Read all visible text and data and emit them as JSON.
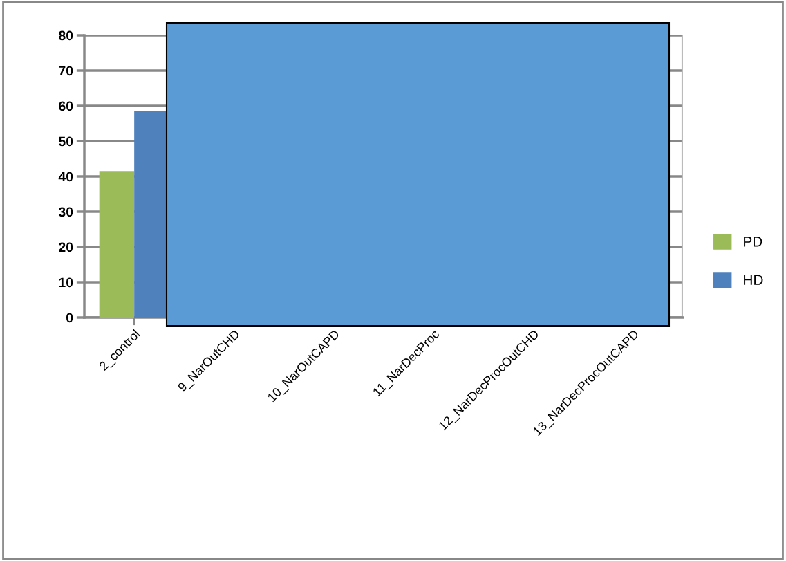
{
  "chart_data": {
    "type": "bar",
    "categories": [
      "2_control",
      "9_NarOutCHD",
      "10_NarOutCAPD",
      "11_NarDecProc",
      "12_NarDecProcOutCHD",
      "13_NarDecProcOutCAPD"
    ],
    "series": [
      {
        "name": "PD",
        "color": "#9bbb59",
        "values": [
          41.5,
          null,
          null,
          null,
          null,
          null
        ]
      },
      {
        "name": "HD",
        "color": "#4f81bd",
        "values": [
          58.5,
          null,
          null,
          null,
          null,
          null
        ]
      }
    ],
    "ylim": [
      0,
      80
    ],
    "yticks": [
      0,
      10,
      20,
      30,
      40,
      50,
      60,
      70,
      80
    ],
    "grid": "y",
    "legend": "right"
  }
}
